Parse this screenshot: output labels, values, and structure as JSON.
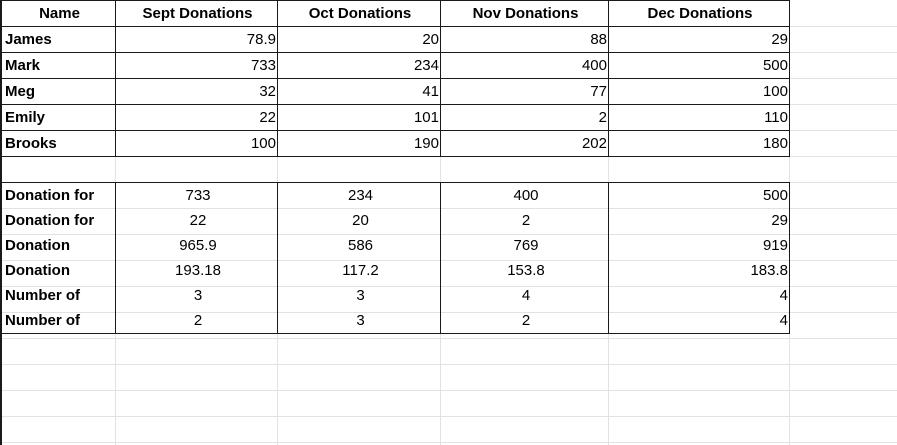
{
  "headers": [
    "Name",
    "Sept Donations",
    "Oct Donations",
    "Nov Donations",
    "Dec Donations"
  ],
  "donors": [
    {
      "name": "James",
      "values": [
        "78.9",
        "20",
        "88",
        "29"
      ]
    },
    {
      "name": "Mark",
      "values": [
        "733",
        "234",
        "400",
        "500"
      ]
    },
    {
      "name": "Meg",
      "values": [
        "32",
        "41",
        "77",
        "100"
      ]
    },
    {
      "name": "Emily",
      "values": [
        "22",
        "101",
        "2",
        "110"
      ]
    },
    {
      "name": "Brooks",
      "values": [
        "100",
        "190",
        "202",
        "180"
      ]
    }
  ],
  "summary": [
    {
      "label": "Donation for",
      "values": [
        "733",
        "234",
        "400",
        "500"
      ]
    },
    {
      "label": "Donation for",
      "values": [
        "22",
        "20",
        "2",
        "29"
      ]
    },
    {
      "label": "Donation",
      "values": [
        "965.9",
        "586",
        "769",
        "919"
      ]
    },
    {
      "label": "Donation",
      "values": [
        "193.18",
        "117.2",
        "153.8",
        "183.8"
      ]
    },
    {
      "label": "Number of",
      "values": [
        "3",
        "3",
        "4",
        "4"
      ]
    },
    {
      "label": "Number of",
      "values": [
        "2",
        "3",
        "2",
        "4"
      ]
    }
  ]
}
